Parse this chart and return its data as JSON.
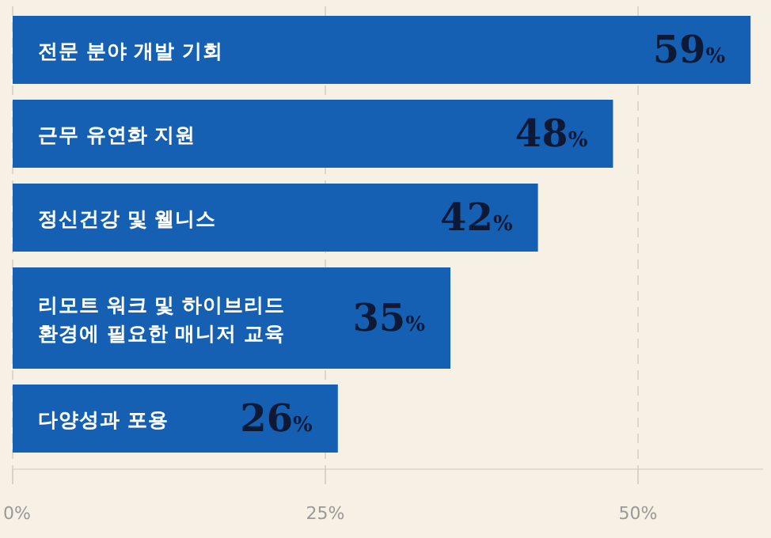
{
  "chart_data": {
    "type": "bar",
    "orientation": "horizontal",
    "categories": [
      "전문 분야 개발 기회",
      "근무 유연화 지원",
      "정신건강 및 웰니스",
      "리모트 워크 및 하이브리드 환경에 필요한 매니저 교육",
      "다양성과 포용"
    ],
    "values": [
      59,
      48,
      42,
      35,
      26
    ],
    "value_labels": [
      "59%",
      "48%",
      "42%",
      "35%",
      "26%"
    ],
    "color": "#1560b2",
    "xlim": [
      0,
      60
    ],
    "xticks": [
      {
        "value": 0,
        "label": "0%"
      },
      {
        "value": 25,
        "label": "25%"
      },
      {
        "value": 50,
        "label": "50%"
      }
    ],
    "grid": "x"
  }
}
